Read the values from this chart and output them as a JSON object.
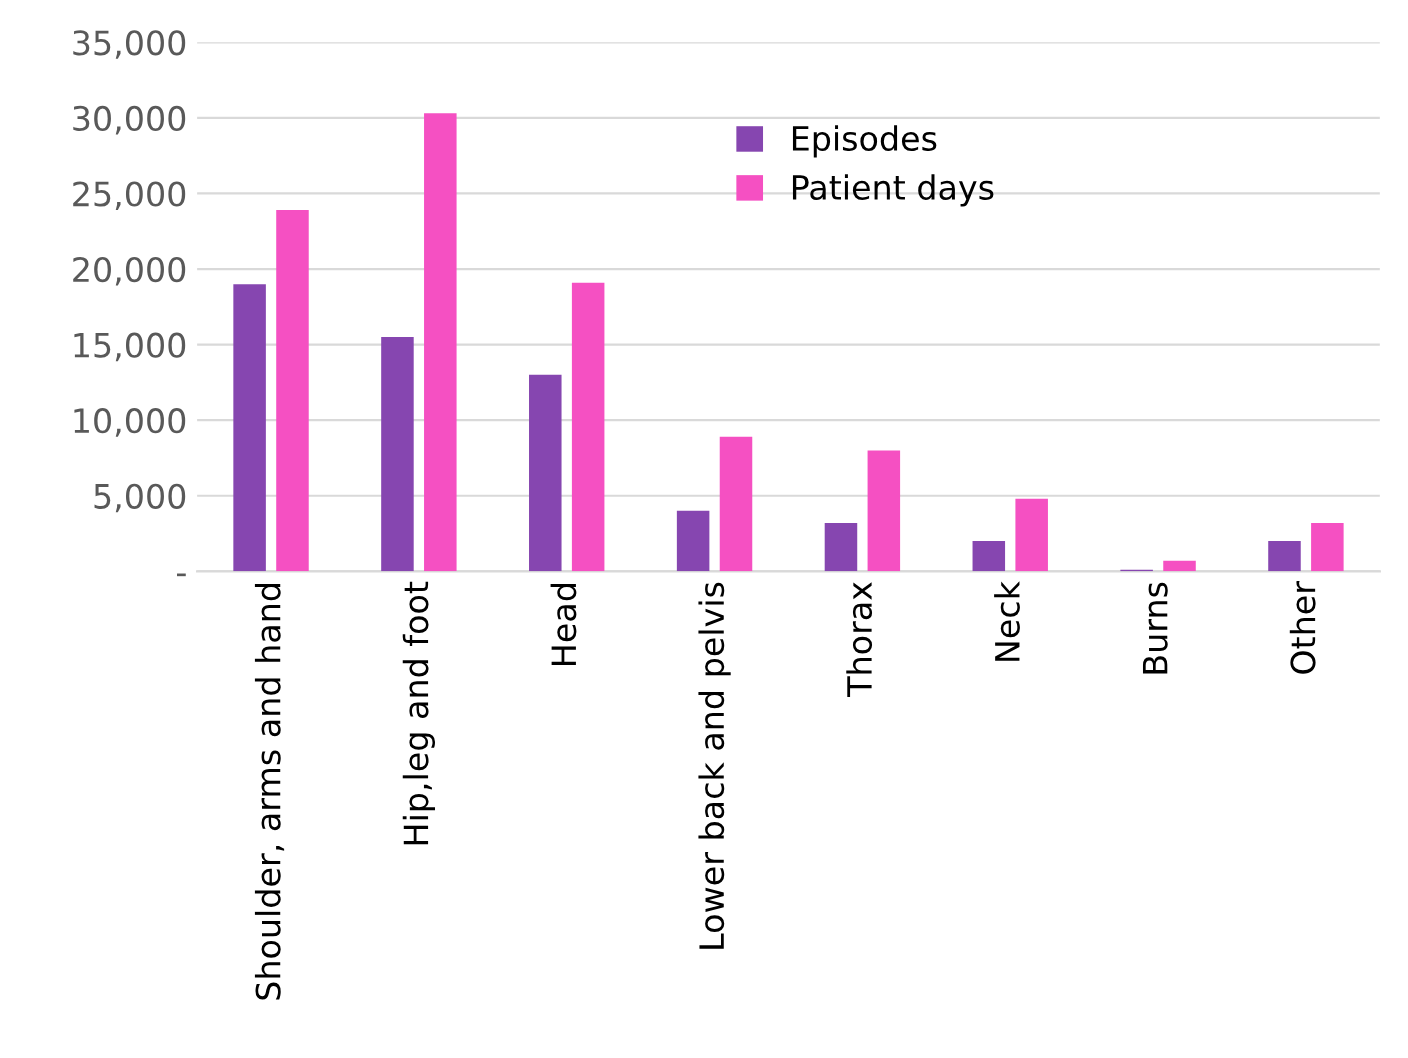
{
  "chart_data": {
    "type": "bar",
    "categories": [
      "Shoulder, arms and hand",
      "Hip,leg and foot",
      "Head",
      "Lower back and pelvis",
      "Thorax",
      "Neck",
      "Burns",
      "Other"
    ],
    "series": [
      {
        "name": "Episodes",
        "color": "#8646b0",
        "values": [
          19000,
          15500,
          13000,
          4000,
          3200,
          2000,
          100,
          2000
        ]
      },
      {
        "name": "Patient days",
        "color": "#f550c2",
        "values": [
          23900,
          30300,
          19100,
          8900,
          8000,
          4800,
          700,
          3200
        ]
      }
    ],
    "ylim": [
      0,
      35000
    ],
    "yticks": [
      {
        "value": 0,
        "label": "-"
      },
      {
        "value": 5000,
        "label": "5,000"
      },
      {
        "value": 10000,
        "label": "10,000"
      },
      {
        "value": 15000,
        "label": "15,000"
      },
      {
        "value": 20000,
        "label": "20,000"
      },
      {
        "value": 25000,
        "label": "25,000"
      },
      {
        "value": 30000,
        "label": "30,000"
      },
      {
        "value": 35000,
        "label": "35,000"
      }
    ],
    "grid": "y",
    "legend": "top right"
  }
}
